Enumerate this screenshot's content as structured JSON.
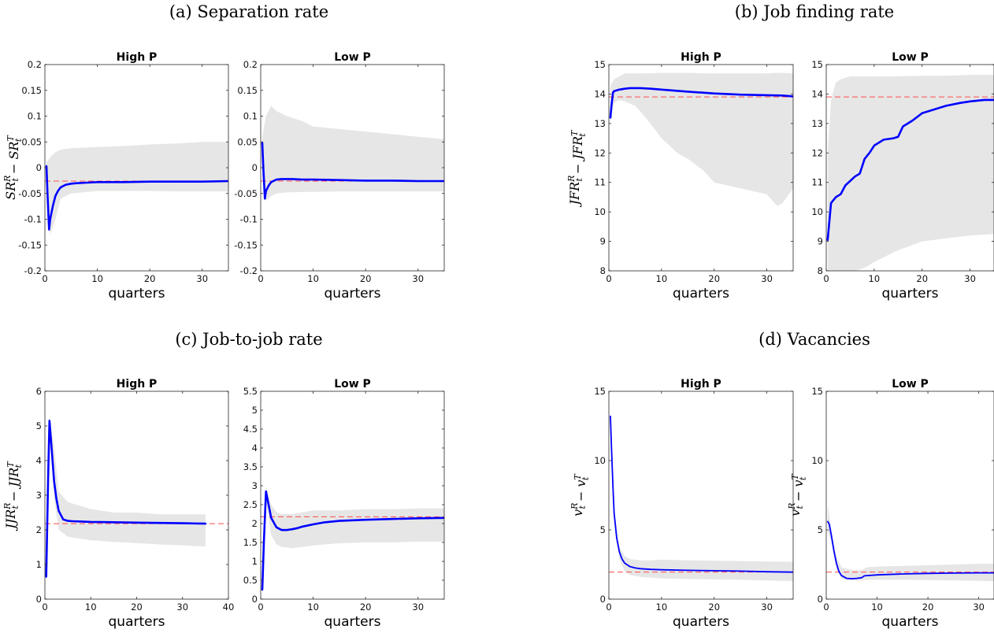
{
  "figure": {
    "panels": [
      {
        "title": "(a) Separation rate"
      },
      {
        "title": "(b) Job finding rate"
      },
      {
        "title": "(c) Job-to-job rate"
      },
      {
        "title": "(d) Vacancies"
      }
    ]
  },
  "colors": {
    "irf": "#0000ff",
    "steady_state": "#ff4d4d",
    "band": "#e6e6e6"
  },
  "chart_data": [
    {
      "type": "line",
      "panel": 0,
      "title": "High P",
      "xlabel": "quarters",
      "ylabel": "SR_t^R − SR_t^T",
      "xlim": [
        0,
        35
      ],
      "ylim": [
        -0.2,
        0.2
      ],
      "xticks": [
        0,
        10,
        20,
        30
      ],
      "yticks": [
        -0.2,
        -0.15,
        -0.1,
        -0.05,
        0,
        0.05,
        0.1,
        0.15,
        0.2
      ],
      "ytick_labels": [
        "-0.2",
        "-0.15",
        "-0.1",
        "-0.05",
        "0",
        "0.05",
        "0.1",
        "0.15",
        "0.2"
      ],
      "steady_state": -0.026,
      "series": {
        "x": [
          0.3,
          0.5,
          0.8,
          1,
          1.5,
          2,
          2.5,
          3,
          4,
          5,
          6,
          8,
          10,
          15,
          20,
          25,
          30,
          35
        ],
        "y": [
          0.003,
          -0.05,
          -0.12,
          -0.1,
          -0.075,
          -0.055,
          -0.045,
          -0.038,
          -0.033,
          -0.031,
          -0.03,
          -0.029,
          -0.028,
          -0.028,
          -0.027,
          -0.027,
          -0.027,
          -0.026
        ]
      },
      "band": {
        "x": [
          0.3,
          1,
          2,
          3,
          5,
          10,
          15,
          20,
          25,
          30,
          35
        ],
        "upper": [
          0.01,
          0.02,
          0.03,
          0.035,
          0.038,
          0.04,
          0.042,
          0.045,
          0.047,
          0.05,
          0.05
        ],
        "lower": [
          -0.005,
          -0.13,
          -0.1,
          -0.06,
          -0.05,
          -0.045,
          -0.045,
          -0.045,
          -0.046,
          -0.046,
          -0.046
        ]
      }
    },
    {
      "type": "line",
      "panel": 0,
      "title": "Low P",
      "xlabel": "quarters",
      "ylabel": "",
      "xlim": [
        0,
        35
      ],
      "ylim": [
        -0.2,
        0.2
      ],
      "xticks": [
        0,
        10,
        20,
        30
      ],
      "yticks": [
        -0.2,
        -0.15,
        -0.1,
        -0.05,
        0,
        0.05,
        0.1,
        0.15,
        0.2
      ],
      "ytick_labels": [
        "-0.2",
        "-0.15",
        "-0.1",
        "-0.05",
        "0",
        "0.05",
        "0.1",
        "0.15",
        "0.2"
      ],
      "steady_state": -0.026,
      "series": {
        "x": [
          0.3,
          0.5,
          0.8,
          1,
          1.5,
          2,
          3,
          4,
          5,
          6,
          8,
          10,
          15,
          20,
          25,
          30,
          35
        ],
        "y": [
          0.048,
          0,
          -0.06,
          -0.045,
          -0.035,
          -0.028,
          -0.023,
          -0.022,
          -0.022,
          -0.022,
          -0.023,
          -0.023,
          -0.024,
          -0.025,
          -0.025,
          -0.026,
          -0.026
        ]
      },
      "band": {
        "x": [
          0.3,
          1,
          2,
          3,
          5,
          8,
          10,
          15,
          20,
          25,
          30,
          35
        ],
        "upper": [
          0.06,
          0.1,
          0.12,
          0.11,
          0.1,
          0.09,
          0.08,
          0.075,
          0.07,
          0.065,
          0.06,
          0.055
        ],
        "lower": [
          -0.02,
          -0.065,
          -0.055,
          -0.05,
          -0.048,
          -0.047,
          -0.047,
          -0.046,
          -0.046,
          -0.046,
          -0.046,
          -0.046
        ]
      }
    },
    {
      "type": "line",
      "panel": 1,
      "title": "High P",
      "xlabel": "quarters",
      "ylabel": "JFR_t^R − JFR_t^T",
      "xlim": [
        0,
        35
      ],
      "ylim": [
        8,
        15
      ],
      "xticks": [
        0,
        10,
        20,
        30
      ],
      "yticks": [
        8,
        9,
        10,
        11,
        12,
        13,
        14,
        15
      ],
      "ytick_labels": [
        "8",
        "9",
        "10",
        "11",
        "12",
        "13",
        "14",
        "15"
      ],
      "steady_state": 13.9,
      "series": {
        "x": [
          0.3,
          0.5,
          0.8,
          1,
          2,
          3,
          4,
          5,
          6,
          8,
          10,
          15,
          20,
          25,
          30,
          33,
          35
        ],
        "y": [
          13.2,
          13.6,
          14.05,
          14.1,
          14.15,
          14.18,
          14.2,
          14.2,
          14.2,
          14.18,
          14.15,
          14.08,
          14.02,
          13.98,
          13.96,
          13.95,
          13.92
        ]
      },
      "band": {
        "x": [
          0.3,
          1,
          2,
          3,
          5,
          7,
          10,
          13,
          15,
          18,
          20,
          25,
          30,
          32,
          33,
          35
        ],
        "upper": [
          14.3,
          14.5,
          14.6,
          14.7,
          14.7,
          14.7,
          14.72,
          14.72,
          14.72,
          14.7,
          14.7,
          14.7,
          14.7,
          14.72,
          14.72,
          14.7
        ],
        "lower": [
          13.1,
          13.7,
          13.8,
          13.75,
          13.6,
          13.2,
          12.5,
          12.0,
          11.8,
          11.4,
          11.0,
          10.8,
          10.6,
          10.2,
          10.3,
          10.8
        ]
      }
    },
    {
      "type": "line",
      "panel": 1,
      "title": "Low P",
      "xlabel": "quarters",
      "ylabel": "",
      "xlim": [
        0,
        35
      ],
      "ylim": [
        8,
        15
      ],
      "xticks": [
        0,
        10,
        20,
        30
      ],
      "yticks": [
        8,
        9,
        10,
        11,
        12,
        13,
        14,
        15
      ],
      "ytick_labels": [
        "8",
        "9",
        "10",
        "11",
        "12",
        "13",
        "14",
        "15"
      ],
      "steady_state": 13.9,
      "series": {
        "x": [
          0.3,
          0.6,
          1,
          1.5,
          2,
          3,
          4,
          5,
          6,
          7,
          8,
          9,
          10,
          12,
          14,
          15,
          16,
          18,
          20,
          22,
          25,
          28,
          30,
          33,
          35
        ],
        "y": [
          9.05,
          9.6,
          10.3,
          10.4,
          10.5,
          10.6,
          10.9,
          11.05,
          11.2,
          11.3,
          11.8,
          12.0,
          12.25,
          12.45,
          12.5,
          12.55,
          12.9,
          13.1,
          13.35,
          13.45,
          13.6,
          13.7,
          13.75,
          13.8,
          13.8
        ]
      },
      "band": {
        "x": [
          0.3,
          1,
          2,
          3,
          4,
          5,
          6,
          8,
          10,
          15,
          20,
          25,
          30,
          35
        ],
        "upper": [
          12.0,
          13.8,
          14.4,
          14.5,
          14.55,
          14.6,
          14.6,
          14.6,
          14.6,
          14.6,
          14.62,
          14.62,
          14.65,
          14.65
        ],
        "lower": [
          8.0,
          8.0,
          8.0,
          8.0,
          8.0,
          8.0,
          8.0,
          8.1,
          8.3,
          8.7,
          9.0,
          9.1,
          9.2,
          9.25
        ]
      }
    },
    {
      "type": "line",
      "panel": 2,
      "title": "High P",
      "xlabel": "quarters",
      "ylabel": "JJR_t^R − JJR_t^T",
      "xlim": [
        0,
        40
      ],
      "ylim": [
        0,
        6
      ],
      "xticks": [
        0,
        10,
        20,
        30,
        40
      ],
      "yticks": [
        0,
        1,
        2,
        3,
        4,
        5,
        6
      ],
      "ytick_labels": [
        "0",
        "1",
        "2",
        "3",
        "4",
        "5",
        "6"
      ],
      "steady_state": 2.18,
      "series": {
        "x": [
          0.3,
          0.7,
          1,
          1.5,
          2,
          2.5,
          3,
          4,
          5,
          6,
          8,
          10,
          15,
          20,
          25,
          30,
          35
        ],
        "y": [
          0.65,
          3.5,
          5.15,
          4.3,
          3.4,
          2.9,
          2.55,
          2.3,
          2.26,
          2.25,
          2.24,
          2.23,
          2.22,
          2.21,
          2.2,
          2.19,
          2.18
        ]
      },
      "band": {
        "x": [
          0.3,
          1,
          2,
          3,
          5,
          10,
          15,
          20,
          25,
          30,
          33,
          35
        ],
        "upper": [
          0.7,
          5.3,
          4.4,
          3.1,
          2.8,
          2.6,
          2.5,
          2.5,
          2.45,
          2.45,
          2.45,
          2.45
        ],
        "lower": [
          0.6,
          4.9,
          2.9,
          2.0,
          1.8,
          1.7,
          1.65,
          1.62,
          1.58,
          1.55,
          1.53,
          1.52
        ]
      }
    },
    {
      "type": "line",
      "panel": 2,
      "title": "Low P",
      "xlabel": "quarters",
      "ylabel": "",
      "xlim": [
        0,
        35
      ],
      "ylim": [
        0,
        5.5
      ],
      "xticks": [
        0,
        10,
        20,
        30
      ],
      "yticks": [
        0,
        0.5,
        1,
        1.5,
        2,
        2.5,
        3,
        3.5,
        4,
        4.5,
        5,
        5.5
      ],
      "ytick_labels": [
        "0",
        "0.5",
        "1",
        "1.5",
        "2",
        "2.5",
        "3",
        "3.5",
        "4",
        "4.5",
        "5",
        "5.5"
      ],
      "steady_state": 2.18,
      "series": {
        "x": [
          0.3,
          0.6,
          1,
          1.5,
          2,
          3,
          4,
          5,
          6,
          7,
          8,
          10,
          12,
          15,
          20,
          25,
          30,
          35
        ],
        "y": [
          0.25,
          1.5,
          2.85,
          2.5,
          2.15,
          1.9,
          1.83,
          1.83,
          1.85,
          1.88,
          1.92,
          1.98,
          2.03,
          2.07,
          2.1,
          2.12,
          2.14,
          2.15
        ]
      },
      "band": {
        "x": [
          0.3,
          1,
          2,
          3,
          4,
          6,
          8,
          10,
          15,
          20,
          25,
          30,
          35
        ],
        "upper": [
          0.35,
          3.0,
          2.5,
          2.3,
          2.25,
          2.25,
          2.3,
          2.35,
          2.35,
          2.38,
          2.38,
          2.4,
          2.4
        ],
        "lower": [
          0.2,
          2.6,
          1.7,
          1.45,
          1.38,
          1.35,
          1.38,
          1.42,
          1.48,
          1.5,
          1.5,
          1.52,
          1.52
        ]
      }
    },
    {
      "type": "line",
      "panel": 3,
      "title": "High P",
      "xlabel": "quarters",
      "ylabel": "v_t^R − v_t^T",
      "xlim": [
        0,
        35
      ],
      "ylim": [
        0,
        15
      ],
      "xticks": [
        0,
        10,
        20,
        30
      ],
      "yticks": [
        0,
        5,
        10,
        15
      ],
      "ytick_labels": [
        "0",
        "5",
        "10",
        "15"
      ],
      "steady_state": 1.95,
      "series": {
        "x": [
          0.3,
          0.5,
          0.8,
          1,
          1.5,
          2,
          2.5,
          3,
          4,
          5,
          6,
          8,
          10,
          15,
          20,
          25,
          30,
          35
        ],
        "y": [
          13.2,
          11.0,
          8.0,
          6.2,
          4.4,
          3.4,
          2.9,
          2.6,
          2.35,
          2.25,
          2.2,
          2.15,
          2.12,
          2.08,
          2.05,
          2.02,
          1.98,
          1.95
        ]
      },
      "band": {
        "x": [
          0.3,
          1,
          2,
          3,
          4,
          6,
          8,
          10,
          15,
          20,
          25,
          30,
          35
        ],
        "upper": [
          13.3,
          6.5,
          3.8,
          3.1,
          2.9,
          2.8,
          2.8,
          2.85,
          2.8,
          2.78,
          2.75,
          2.72,
          2.7
        ],
        "lower": [
          13.1,
          6.0,
          2.9,
          2.0,
          1.75,
          1.6,
          1.55,
          1.5,
          1.45,
          1.42,
          1.4,
          1.35,
          1.3
        ]
      }
    },
    {
      "type": "line",
      "panel": 3,
      "title": "Low P",
      "xlabel": "quarters",
      "ylabel": "v_t^R − v_t^T",
      "xlim": [
        0,
        33
      ],
      "ylim": [
        0,
        15
      ],
      "xticks": [
        0,
        10,
        20,
        30
      ],
      "yticks": [
        0,
        5,
        10,
        15
      ],
      "ytick_labels": [
        "0",
        "5",
        "10",
        "15"
      ],
      "steady_state": 1.95,
      "series": {
        "x": [
          0.3,
          0.6,
          1,
          1.5,
          2,
          2.5,
          3,
          4,
          5,
          6,
          7,
          7.5,
          8,
          10,
          12,
          15,
          20,
          25,
          30,
          33
        ],
        "y": [
          5.6,
          5.4,
          4.6,
          3.5,
          2.6,
          2.0,
          1.7,
          1.5,
          1.48,
          1.5,
          1.55,
          1.68,
          1.7,
          1.75,
          1.78,
          1.82,
          1.86,
          1.88,
          1.9,
          1.9
        ]
      },
      "band": {
        "x": [
          0.3,
          1,
          2,
          3,
          5,
          7,
          8,
          10,
          15,
          20,
          25,
          30,
          33
        ],
        "upper": [
          6.8,
          5.0,
          3.1,
          2.3,
          2.1,
          2.1,
          2.3,
          2.35,
          2.4,
          2.45,
          2.5,
          2.55,
          2.55
        ],
        "lower": [
          4.8,
          4.2,
          2.2,
          1.45,
          1.35,
          1.35,
          1.4,
          1.4,
          1.4,
          1.38,
          1.35,
          1.32,
          1.3
        ]
      }
    }
  ]
}
